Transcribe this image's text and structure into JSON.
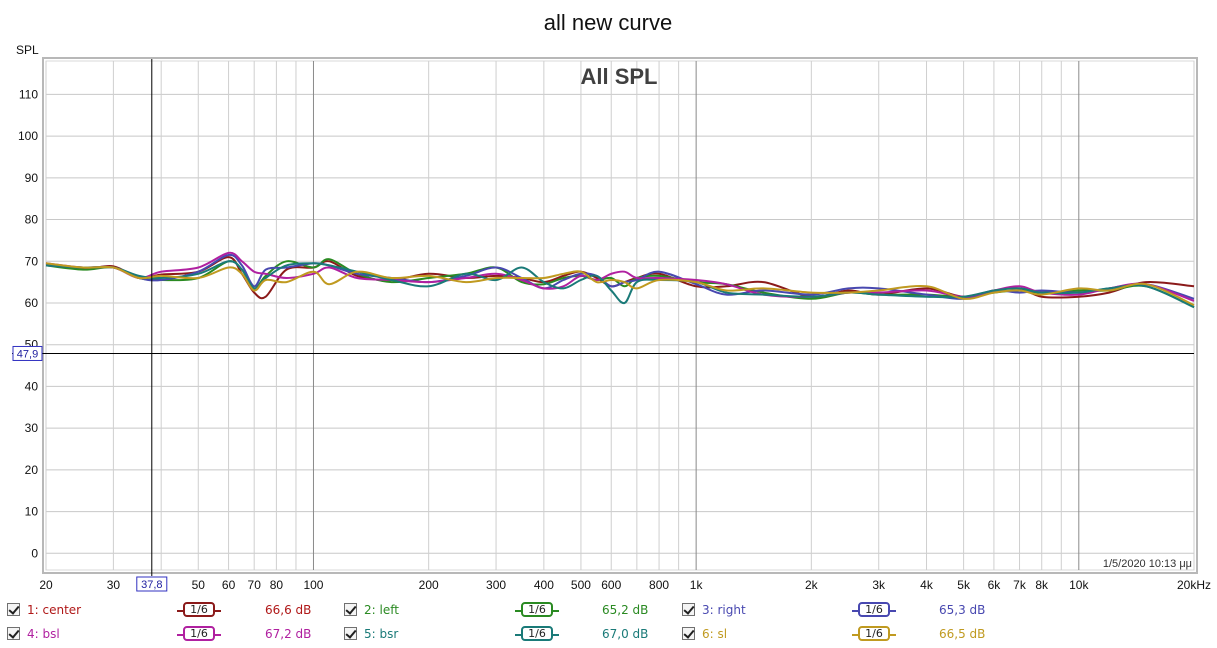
{
  "window_title": "all new curve",
  "chart_data": {
    "type": "line",
    "title": "All SPL",
    "ylabel": "SPL",
    "xlabel": "",
    "x_scale": "log",
    "xlim": [
      20,
      20000
    ],
    "ylim": [
      -4,
      118
    ],
    "grid": true,
    "y_ticks": [
      0,
      10,
      20,
      30,
      40,
      50,
      60,
      70,
      80,
      90,
      100,
      110
    ],
    "x_ticks": [
      {
        "v": 20,
        "label": "20"
      },
      {
        "v": 30,
        "label": "30"
      },
      {
        "v": 50,
        "label": "50"
      },
      {
        "v": 60,
        "label": "60"
      },
      {
        "v": 70,
        "label": "70"
      },
      {
        "v": 80,
        "label": "80"
      },
      {
        "v": 100,
        "label": "100"
      },
      {
        "v": 200,
        "label": "200"
      },
      {
        "v": 300,
        "label": "300"
      },
      {
        "v": 400,
        "label": "400"
      },
      {
        "v": 500,
        "label": "500"
      },
      {
        "v": 600,
        "label": "600"
      },
      {
        "v": 800,
        "label": "800"
      },
      {
        "v": 1000,
        "label": "1k"
      },
      {
        "v": 2000,
        "label": "2k"
      },
      {
        "v": 3000,
        "label": "3k"
      },
      {
        "v": 4000,
        "label": "4k"
      },
      {
        "v": 5000,
        "label": "5k"
      },
      {
        "v": 6000,
        "label": "6k"
      },
      {
        "v": 7000,
        "label": "7k"
      },
      {
        "v": 8000,
        "label": "8k"
      },
      {
        "v": 10000,
        "label": "10k"
      },
      {
        "v": 20000,
        "label": "20kHz"
      }
    ],
    "cursor": {
      "x": 37.8,
      "y": 47.9,
      "x_label": "37,8",
      "y_label": "47,9"
    },
    "timestamp": "1/5/2020 10:13 μμ",
    "series": [
      {
        "name": "1: center",
        "color": "#8b1a1a",
        "x": [
          20,
          25,
          30,
          35,
          40,
          50,
          60,
          65,
          70,
          75,
          85,
          100,
          110,
          130,
          160,
          200,
          250,
          300,
          350,
          400,
          450,
          500,
          550,
          600,
          650,
          700,
          800,
          1000,
          1200,
          1500,
          2000,
          2500,
          3000,
          4000,
          5000,
          6000,
          7000,
          8000,
          10000,
          12000,
          15000,
          20000
        ],
        "y": [
          69.5,
          68.2,
          68.8,
          66.0,
          66.8,
          67.5,
          71.0,
          67.0,
          62.5,
          61.5,
          68.0,
          68.5,
          70.0,
          66.5,
          65.5,
          67.0,
          66.0,
          66.5,
          66.0,
          65.0,
          66.5,
          67.5,
          66.0,
          64.0,
          65.0,
          66.0,
          67.0,
          64.0,
          64.0,
          65.0,
          61.5,
          63.0,
          62.0,
          63.5,
          61.5,
          63.0,
          63.5,
          61.5,
          61.5,
          62.5,
          65.0,
          64.0
        ]
      },
      {
        "name": "2: left",
        "color": "#2a8a22",
        "x": [
          20,
          25,
          30,
          35,
          40,
          50,
          60,
          65,
          70,
          75,
          85,
          100,
          110,
          130,
          160,
          200,
          250,
          300,
          350,
          400,
          450,
          500,
          550,
          600,
          650,
          700,
          800,
          1000,
          1200,
          1500,
          2000,
          2500,
          3000,
          4000,
          5000,
          6000,
          7000,
          8000,
          10000,
          12000,
          15000,
          20000
        ],
        "y": [
          69.0,
          68.0,
          68.5,
          66.0,
          65.5,
          66.0,
          70.0,
          68.0,
          63.5,
          66.5,
          70.0,
          68.5,
          70.5,
          67.0,
          65.0,
          66.0,
          67.0,
          68.5,
          65.0,
          64.5,
          66.0,
          66.5,
          65.5,
          66.0,
          64.0,
          66.0,
          66.5,
          65.0,
          64.5,
          62.5,
          61.0,
          62.5,
          62.0,
          62.0,
          61.5,
          62.5,
          63.0,
          62.5,
          63.0,
          63.0,
          64.0,
          59.0
        ]
      },
      {
        "name": "3: right",
        "color": "#4848b0",
        "x": [
          20,
          25,
          30,
          35,
          40,
          50,
          60,
          65,
          70,
          75,
          85,
          100,
          110,
          130,
          160,
          200,
          250,
          300,
          350,
          400,
          450,
          500,
          550,
          600,
          650,
          700,
          800,
          1000,
          1200,
          1500,
          2000,
          2500,
          3000,
          4000,
          5000,
          6000,
          7000,
          8000,
          10000,
          12000,
          15000,
          20000
        ],
        "y": [
          69.0,
          68.5,
          68.5,
          66.0,
          65.5,
          67.5,
          71.5,
          69.0,
          64.0,
          68.0,
          68.5,
          69.5,
          69.0,
          67.0,
          66.0,
          65.0,
          66.5,
          68.5,
          66.0,
          63.5,
          65.5,
          67.0,
          66.5,
          64.0,
          65.0,
          65.5,
          67.5,
          64.5,
          62.0,
          63.0,
          62.0,
          63.5,
          63.5,
          62.0,
          61.0,
          63.0,
          62.5,
          63.0,
          62.5,
          63.5,
          64.5,
          61.0
        ]
      },
      {
        "name": "4: bsl",
        "color": "#b020a0",
        "x": [
          20,
          25,
          30,
          35,
          40,
          50,
          60,
          65,
          70,
          75,
          85,
          100,
          110,
          130,
          160,
          200,
          250,
          300,
          350,
          400,
          450,
          500,
          550,
          600,
          650,
          700,
          800,
          1000,
          1200,
          1500,
          2000,
          2500,
          3000,
          4000,
          5000,
          6000,
          7000,
          8000,
          10000,
          12000,
          15000,
          20000
        ],
        "y": [
          69.5,
          68.5,
          68.5,
          66.0,
          67.5,
          68.5,
          72.0,
          70.0,
          67.5,
          67.0,
          66.0,
          67.0,
          68.5,
          66.0,
          65.5,
          65.0,
          66.0,
          67.0,
          65.5,
          63.5,
          64.0,
          66.5,
          65.5,
          67.0,
          67.5,
          66.0,
          66.0,
          65.5,
          64.5,
          62.0,
          61.5,
          62.5,
          62.5,
          63.0,
          61.5,
          63.0,
          64.0,
          62.5,
          62.0,
          63.5,
          64.5,
          60.5
        ]
      },
      {
        "name": "5: bsr",
        "color": "#1a7a78",
        "x": [
          20,
          25,
          30,
          35,
          40,
          50,
          60,
          65,
          70,
          75,
          85,
          100,
          110,
          130,
          160,
          200,
          250,
          300,
          350,
          400,
          450,
          500,
          550,
          600,
          650,
          700,
          800,
          1000,
          1200,
          1500,
          2000,
          2500,
          3000,
          4000,
          5000,
          6000,
          7000,
          8000,
          10000,
          12000,
          15000,
          20000
        ],
        "y": [
          69.0,
          68.5,
          68.5,
          66.5,
          66.0,
          67.0,
          70.0,
          68.0,
          63.5,
          66.0,
          69.0,
          69.5,
          69.0,
          67.5,
          65.5,
          64.0,
          67.0,
          65.5,
          68.5,
          65.0,
          63.5,
          65.5,
          66.5,
          63.0,
          60.0,
          65.0,
          65.5,
          65.0,
          62.5,
          62.0,
          61.5,
          62.5,
          62.0,
          61.5,
          61.5,
          63.0,
          63.5,
          62.5,
          62.5,
          63.5,
          64.0,
          59.0
        ]
      },
      {
        "name": "6: sl",
        "color": "#c09a20",
        "x": [
          20,
          25,
          30,
          35,
          40,
          50,
          60,
          65,
          70,
          75,
          85,
          100,
          110,
          130,
          160,
          200,
          250,
          300,
          350,
          400,
          450,
          500,
          550,
          600,
          650,
          700,
          800,
          1000,
          1200,
          1500,
          2000,
          2500,
          3000,
          4000,
          5000,
          6000,
          7000,
          8000,
          10000,
          12000,
          15000,
          20000
        ],
        "y": [
          69.5,
          68.5,
          68.5,
          66.0,
          66.5,
          66.0,
          68.5,
          67.0,
          63.0,
          65.5,
          65.0,
          67.5,
          64.5,
          67.5,
          66.0,
          66.5,
          65.0,
          66.0,
          66.0,
          66.0,
          67.0,
          67.5,
          65.0,
          65.5,
          65.0,
          63.5,
          65.5,
          65.0,
          63.0,
          63.5,
          62.5,
          62.5,
          63.0,
          64.0,
          61.0,
          62.5,
          63.0,
          62.0,
          63.5,
          63.0,
          64.5,
          59.5
        ]
      }
    ]
  },
  "legend": [
    {
      "label": "1: center",
      "value": "66,6 dB",
      "smoothing": "1/6",
      "color": "#8b1a1a",
      "label_color": "#b01818"
    },
    {
      "label": "2: left",
      "value": "65,2 dB",
      "smoothing": "1/6",
      "color": "#2a8a22",
      "label_color": "#2a8a22"
    },
    {
      "label": "3: right",
      "value": "65,3 dB",
      "smoothing": "1/6",
      "color": "#4848b0",
      "label_color": "#4848b0"
    },
    {
      "label": "4: bsl",
      "value": "67,2 dB",
      "smoothing": "1/6",
      "color": "#b020a0",
      "label_color": "#b020a0"
    },
    {
      "label": "5: bsr",
      "value": "67,0 dB",
      "smoothing": "1/6",
      "color": "#1a7a78",
      "label_color": "#1a7a78"
    },
    {
      "label": "6: sl",
      "value": "66,5 dB",
      "smoothing": "1/6",
      "color": "#c09a20",
      "label_color": "#c09a20"
    }
  ]
}
